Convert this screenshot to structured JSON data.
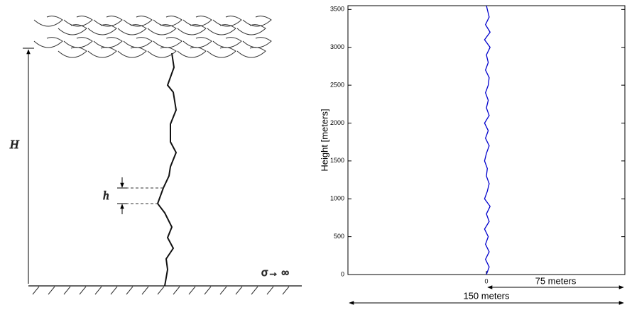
{
  "diagram": {
    "height_label": "H",
    "step_label": "h",
    "ground_label": "σ→ ∞"
  },
  "chart_data": {
    "type": "line",
    "y_label": "Height [meters]",
    "annotations": [
      "75 meters",
      "150 meters"
    ],
    "xlim": [
      -75,
      75
    ],
    "ylim": [
      0,
      3550
    ],
    "xticks": [
      0
    ],
    "yticks": [
      0,
      500,
      1000,
      1500,
      2000,
      2500,
      3000,
      3500
    ],
    "series": [
      {
        "color": "#0000cc",
        "x": [
          0,
          1.5,
          -0.5,
          1.5,
          -0.5,
          1,
          -1,
          1.5,
          0,
          2,
          -1,
          0.5,
          1.5,
          0,
          0.5,
          -1,
          0,
          1.5,
          -0.5,
          1,
          -1,
          1.5,
          0,
          1,
          -0.5,
          1,
          1.5,
          -0.5,
          1,
          0,
          2,
          -1,
          2,
          -0.5,
          1.5,
          0
        ],
        "y": [
          0,
          100,
          200,
          300,
          400,
          500,
          600,
          700,
          800,
          900,
          1000,
          1100,
          1200,
          1300,
          1400,
          1500,
          1600,
          1700,
          1800,
          1900,
          2000,
          2100,
          2200,
          2300,
          2400,
          2500,
          2600,
          2700,
          2800,
          2900,
          3000,
          3100,
          3200,
          3300,
          3400,
          3550
        ]
      }
    ]
  }
}
